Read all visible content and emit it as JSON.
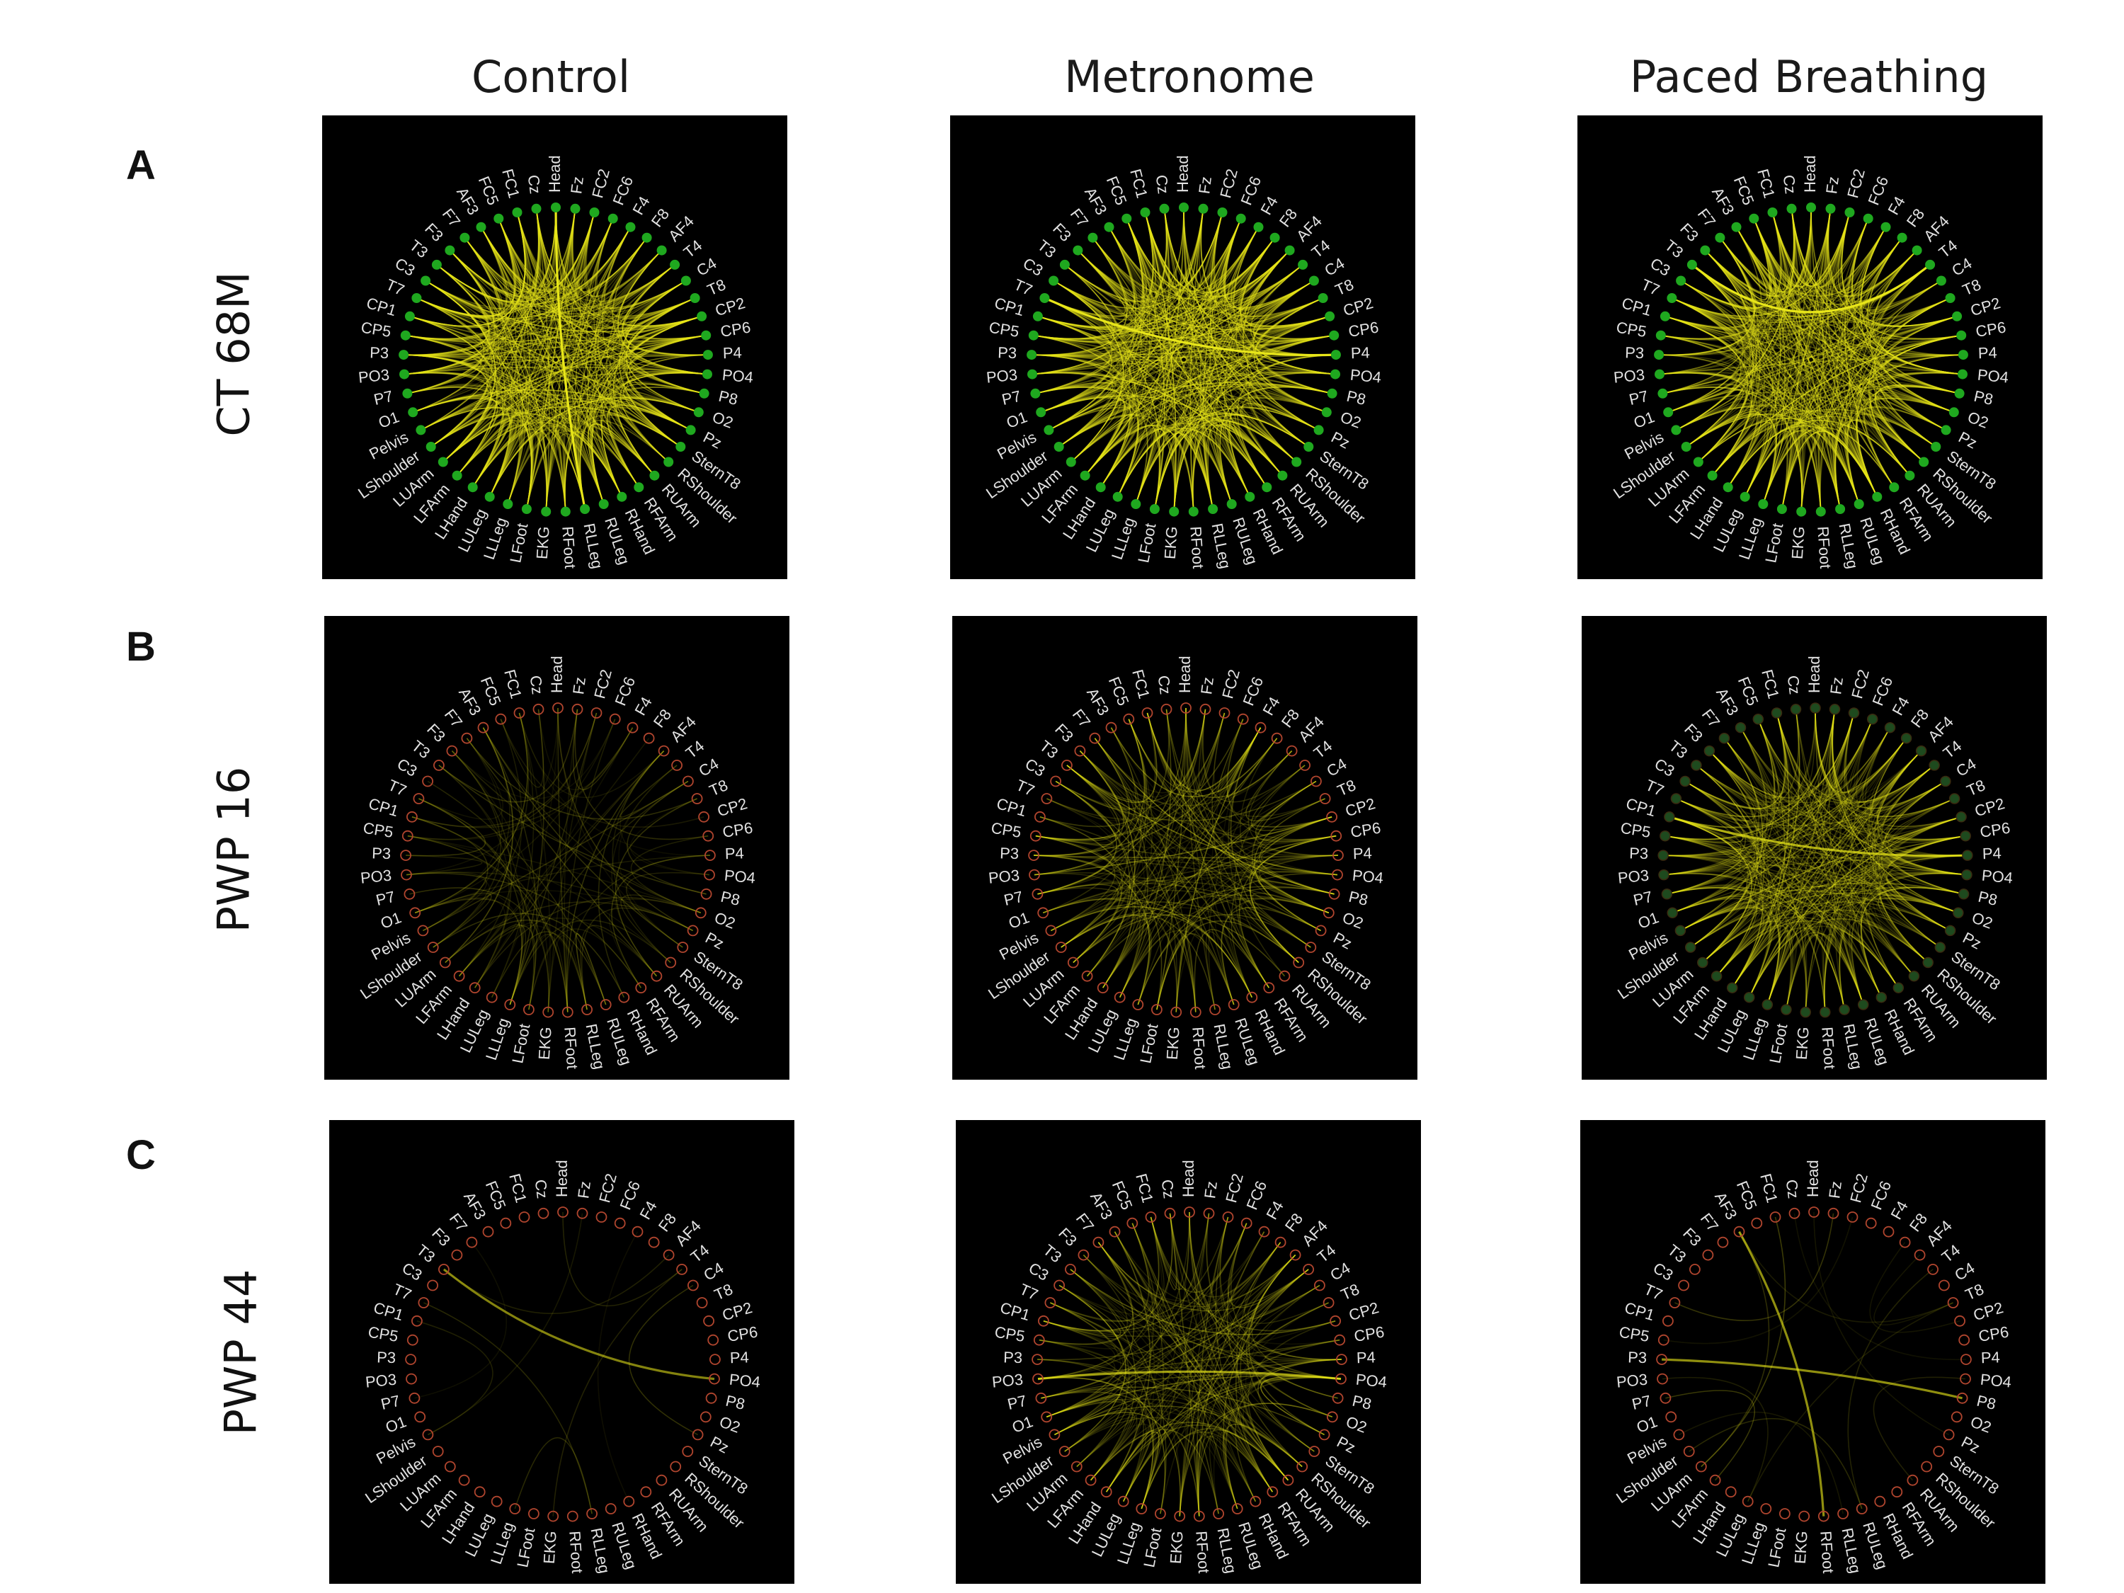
{
  "figure": {
    "columns": [
      "Control",
      "Metronome",
      "Paced Breathing"
    ],
    "rows": [
      {
        "letter": "A",
        "label": "CT 68M"
      },
      {
        "letter": "B",
        "label": "PWP 16"
      },
      {
        "letter": "C",
        "label": "PWP 44"
      }
    ]
  },
  "nodes": [
    "Head",
    "Fz",
    "FC2",
    "FC6",
    "F4",
    "F8",
    "AF4",
    "T4",
    "C4",
    "T8",
    "CP2",
    "CP6",
    "P4",
    "PO4",
    "P8",
    "O2",
    "Pz",
    "SternT8",
    "RShoulder",
    "RUArm",
    "RFArm",
    "RHand",
    "RULeg",
    "RLLeg",
    "RFoot",
    "EKG",
    "LFoot",
    "LLLeg",
    "LULeg",
    "LHand",
    "LFArm",
    "LUArm",
    "LShoulder",
    "Pelvis",
    "O1",
    "P7",
    "PO3",
    "P3",
    "CP5",
    "CP1",
    "T7",
    "C3",
    "T3",
    "F3",
    "F7",
    "AF3",
    "FC5",
    "FC1",
    "Cz"
  ],
  "colors": {
    "background": "#000000",
    "label": "#e2e2e2",
    "edge": "#e8e619",
    "node_active": "#1fa81f",
    "node_inactive": "#b0452e"
  },
  "panels": [
    {
      "row": 0,
      "col": 0,
      "density": 1.0,
      "brightness": 1.0,
      "node_style": "active",
      "highlight": [
        [
          0,
          23
        ]
      ]
    },
    {
      "row": 0,
      "col": 1,
      "density": 1.0,
      "brightness": 1.0,
      "node_style": "active",
      "highlight": [
        [
          12,
          40
        ]
      ]
    },
    {
      "row": 0,
      "col": 2,
      "density": 1.0,
      "brightness": 0.95,
      "node_style": "active",
      "highlight": [
        [
          42,
          7
        ]
      ]
    },
    {
      "row": 1,
      "col": 0,
      "density": 0.22,
      "brightness": 0.45,
      "node_style": "inactive",
      "highlight": []
    },
    {
      "row": 1,
      "col": 1,
      "density": 0.45,
      "brightness": 0.6,
      "node_style": "inactive",
      "highlight": []
    },
    {
      "row": 1,
      "col": 2,
      "density": 0.75,
      "brightness": 0.65,
      "node_style": "dim",
      "highlight": [
        [
          12,
          39
        ]
      ]
    },
    {
      "row": 2,
      "col": 0,
      "density": 0.02,
      "brightness": 0.5,
      "node_style": "inactive",
      "highlight": [
        [
          13,
          42
        ]
      ]
    },
    {
      "row": 2,
      "col": 1,
      "density": 0.4,
      "brightness": 0.6,
      "node_style": "inactive",
      "highlight": [
        [
          13,
          36
        ]
      ]
    },
    {
      "row": 2,
      "col": 2,
      "density": 0.03,
      "brightness": 0.55,
      "node_style": "inactive",
      "highlight": [
        [
          14,
          37
        ],
        [
          45,
          24
        ]
      ]
    }
  ]
}
